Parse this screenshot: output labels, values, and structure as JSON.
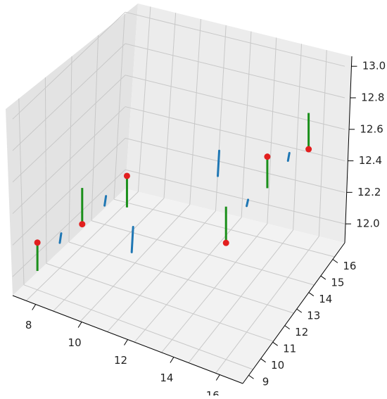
{
  "chart_data": {
    "type": "3d-quiver-scatter",
    "title": "",
    "xlabel": "",
    "ylabel": "",
    "zlabel": "",
    "x_ticks": [
      "8",
      "10",
      "12",
      "14",
      "16"
    ],
    "y_ticks": [
      "9",
      "10",
      "11",
      "12",
      "13",
      "14",
      "15",
      "16"
    ],
    "z_ticks": [
      "12.0",
      "12.2",
      "12.4",
      "12.6",
      "12.8",
      "13.0"
    ],
    "grid": true,
    "legend": "none",
    "colors": {
      "pane_back": "#ececec",
      "pane_side": "#e3e3e3",
      "pane_floor": "#f2f2f2",
      "grid": "#c8c8c8",
      "axis_line": "#000000",
      "points": "#e21f1f",
      "quiver_green": "#1a8f1a",
      "quiver_blue": "#1f77b4"
    },
    "points": [
      {
        "x": 8,
        "y": 9,
        "z": 12.05
      },
      {
        "x": 12,
        "y": 9,
        "z": 12.02
      },
      {
        "x": 16,
        "y": 9,
        "z": 12.18
      },
      {
        "x": 8,
        "y": 16,
        "z": 12.52
      },
      {
        "x": 12,
        "y": 16,
        "z": 12.82
      },
      {
        "x": 16,
        "y": 16,
        "z": 12.62
      }
    ],
    "green_segments": [
      {
        "x": 8,
        "y": 9,
        "z0": 11.85,
        "z1": 12.05
      },
      {
        "x": 12,
        "y": 9,
        "z0": 12.02,
        "z1": 12.25
      },
      {
        "x": 16,
        "y": 9,
        "z0": 12.0,
        "z1": 12.18
      },
      {
        "x": 8,
        "y": 16,
        "z0": 12.52,
        "z1": 12.75
      },
      {
        "x": 12,
        "y": 16,
        "z0": 12.62,
        "z1": 12.82
      },
      {
        "x": 16,
        "y": 16,
        "z0": 12.62,
        "z1": 12.85
      }
    ],
    "blue_segments": [
      {
        "x": 8,
        "y": 12.5,
        "z0": 12.2,
        "z1": 12.36
      },
      {
        "x": 16,
        "y": 12.5,
        "z0": 12.34,
        "z1": 12.5
      },
      {
        "x": 10,
        "y": 9,
        "z0": 12.0,
        "z1": 12.06
      },
      {
        "x": 14,
        "y": 9,
        "z0": 12.04,
        "z1": 12.1
      },
      {
        "x": 10,
        "y": 16,
        "z0": 12.62,
        "z1": 12.67
      },
      {
        "x": 14,
        "y": 16,
        "z0": 12.68,
        "z1": 12.72
      }
    ]
  }
}
